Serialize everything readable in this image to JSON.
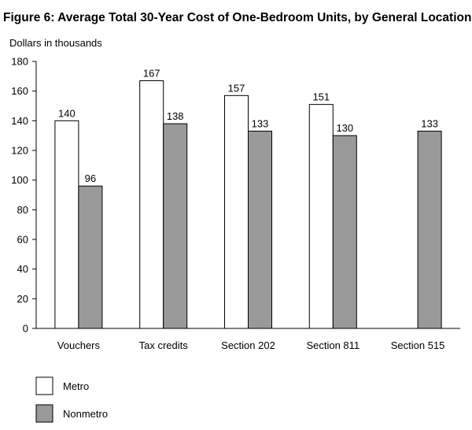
{
  "chart_data": {
    "type": "bar",
    "title": "Figure 6:  Average Total 30-Year Cost of One-Bedroom Units, by General Location",
    "ylabel": "Dollars in thousands",
    "xlabel": "",
    "ylim": [
      0,
      180
    ],
    "yticks": [
      0,
      20,
      40,
      60,
      80,
      100,
      120,
      140,
      160,
      180
    ],
    "categories": [
      "Vouchers",
      "Tax credits",
      "Section 202",
      "Section 811",
      "Section 515"
    ],
    "series": [
      {
        "name": "Metro",
        "color": "#ffffff",
        "values": [
          140,
          167,
          157,
          151,
          null
        ]
      },
      {
        "name": "Nonmetro",
        "color": "#999999",
        "values": [
          96,
          138,
          133,
          130,
          133
        ]
      }
    ],
    "legend_position": "bottom-left",
    "grid": false
  }
}
